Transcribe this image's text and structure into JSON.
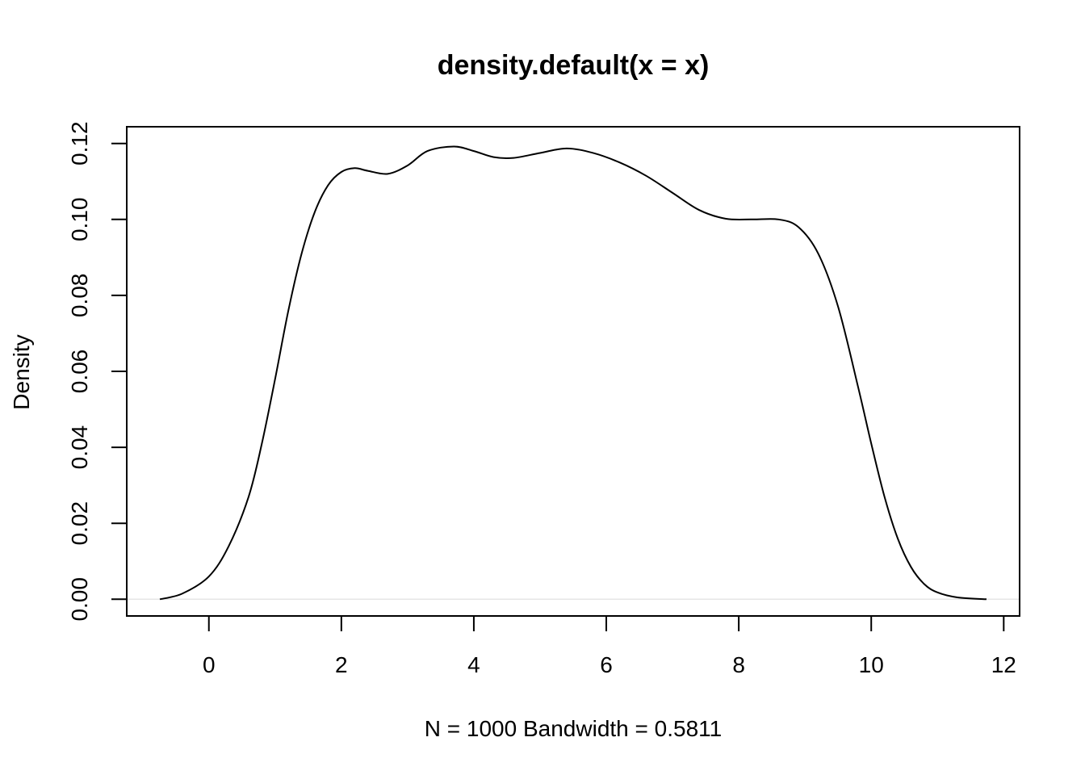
{
  "chart_data": {
    "type": "line",
    "title": "density.default(x = x)",
    "xlabel": "N = 1000   Bandwidth = 0.5811",
    "ylabel": "Density",
    "xlim": [
      -1.24,
      12.24
    ],
    "ylim": [
      -0.0044,
      0.1244
    ],
    "x_ticks": [
      0,
      2,
      4,
      6,
      8,
      10,
      12
    ],
    "x_tick_labels": [
      "0",
      "2",
      "4",
      "6",
      "8",
      "10",
      "12"
    ],
    "y_ticks": [
      0.0,
      0.02,
      0.04,
      0.06,
      0.08,
      0.1,
      0.12
    ],
    "y_tick_labels": [
      "0.00",
      "0.02",
      "0.04",
      "0.06",
      "0.08",
      "0.10",
      "0.12"
    ],
    "grid": false,
    "zero_line": true,
    "series": [
      {
        "color": "#000000",
        "x": [
          -0.74,
          -0.4,
          0.0,
          0.3,
          0.6,
          0.8,
          1.0,
          1.2,
          1.4,
          1.6,
          1.8,
          2.0,
          2.2,
          2.4,
          2.7,
          3.0,
          3.3,
          3.7,
          4.0,
          4.3,
          4.6,
          5.0,
          5.4,
          5.8,
          6.2,
          6.6,
          7.0,
          7.4,
          7.8,
          8.2,
          8.6,
          8.9,
          9.2,
          9.5,
          9.8,
          10.0,
          10.2,
          10.4,
          10.6,
          10.8,
          11.0,
          11.3,
          11.74
        ],
        "y": [
          0.0,
          0.0015,
          0.006,
          0.014,
          0.027,
          0.041,
          0.058,
          0.076,
          0.091,
          0.102,
          0.109,
          0.1125,
          0.1135,
          0.1128,
          0.112,
          0.1142,
          0.118,
          0.1192,
          0.118,
          0.1164,
          0.1162,
          0.1175,
          0.1187,
          0.1175,
          0.115,
          0.1115,
          0.107,
          0.1025,
          0.1002,
          0.1,
          0.1,
          0.098,
          0.091,
          0.077,
          0.056,
          0.041,
          0.027,
          0.016,
          0.0085,
          0.004,
          0.0018,
          0.0005,
          0.0
        ]
      }
    ]
  }
}
